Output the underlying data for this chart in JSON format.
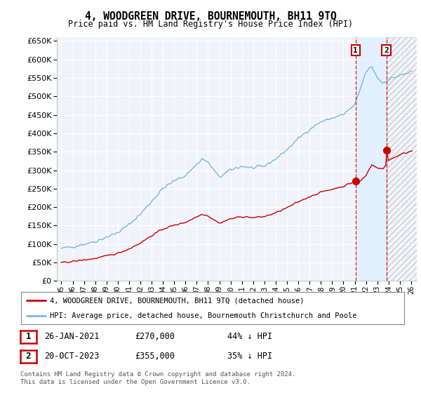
{
  "title": "4, WOODGREEN DRIVE, BOURNEMOUTH, BH11 9TQ",
  "subtitle": "Price paid vs. HM Land Registry's House Price Index (HPI)",
  "legend_line1": "4, WOODGREEN DRIVE, BOURNEMOUTH, BH11 9TQ (detached house)",
  "legend_line2": "HPI: Average price, detached house, Bournemouth Christchurch and Poole",
  "annotation1_date": "26-JAN-2021",
  "annotation1_price": "£270,000",
  "annotation1_hpi": "44% ↓ HPI",
  "annotation2_date": "20-OCT-2023",
  "annotation2_price": "£355,000",
  "annotation2_hpi": "35% ↓ HPI",
  "footnote": "Contains HM Land Registry data © Crown copyright and database right 2024.\nThis data is licensed under the Open Government Licence v3.0.",
  "hpi_color": "#7ab8d9",
  "price_color": "#cc0000",
  "shade_color": "#ddeeff",
  "t1": 2021.08,
  "t2": 2023.8,
  "p1": 270000,
  "p2": 355000
}
